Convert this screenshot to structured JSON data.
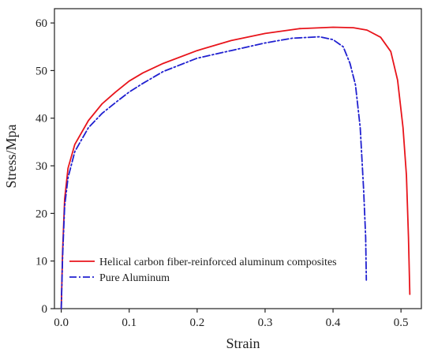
{
  "chart_data": {
    "type": "line",
    "xlabel": "Strain",
    "ylabel": "Stress/Mpa",
    "xlim": [
      -0.01,
      0.53
    ],
    "ylim": [
      0,
      63
    ],
    "xticks": [
      0.0,
      0.1,
      0.2,
      0.3,
      0.4,
      0.5
    ],
    "xtick_labels": [
      "0.0",
      "0.1",
      "0.2",
      "0.3",
      "0.4",
      "0.5"
    ],
    "yticks": [
      0,
      10,
      20,
      30,
      40,
      50,
      60
    ],
    "ytick_labels": [
      "0",
      "10",
      "20",
      "30",
      "40",
      "50",
      "60"
    ],
    "legend_position": "bottom-left",
    "grid": false,
    "series": [
      {
        "name": "Helical carbon fiber-reinforced aluminum composites",
        "color": "#e8141b",
        "line_style": "solid",
        "points": [
          [
            0.0,
            0.0
          ],
          [
            0.002,
            12.0
          ],
          [
            0.005,
            23.0
          ],
          [
            0.01,
            29.5
          ],
          [
            0.02,
            34.5
          ],
          [
            0.04,
            39.5
          ],
          [
            0.06,
            43.0
          ],
          [
            0.08,
            45.5
          ],
          [
            0.1,
            47.8
          ],
          [
            0.12,
            49.5
          ],
          [
            0.15,
            51.5
          ],
          [
            0.2,
            54.2
          ],
          [
            0.25,
            56.3
          ],
          [
            0.3,
            57.8
          ],
          [
            0.35,
            58.8
          ],
          [
            0.4,
            59.1
          ],
          [
            0.43,
            59.0
          ],
          [
            0.45,
            58.5
          ],
          [
            0.47,
            57.0
          ],
          [
            0.485,
            54.0
          ],
          [
            0.495,
            48.0
          ],
          [
            0.503,
            38.0
          ],
          [
            0.508,
            28.0
          ],
          [
            0.511,
            15.0
          ],
          [
            0.513,
            3.0
          ]
        ]
      },
      {
        "name": "Pure Aluminum",
        "color": "#2020d0",
        "line_style": "dash-dot",
        "points": [
          [
            0.0,
            0.0
          ],
          [
            0.002,
            11.0
          ],
          [
            0.005,
            21.5
          ],
          [
            0.01,
            27.5
          ],
          [
            0.02,
            33.0
          ],
          [
            0.04,
            38.0
          ],
          [
            0.06,
            41.0
          ],
          [
            0.08,
            43.3
          ],
          [
            0.1,
            45.5
          ],
          [
            0.12,
            47.3
          ],
          [
            0.15,
            49.8
          ],
          [
            0.2,
            52.6
          ],
          [
            0.25,
            54.2
          ],
          [
            0.3,
            55.8
          ],
          [
            0.34,
            56.8
          ],
          [
            0.38,
            57.1
          ],
          [
            0.4,
            56.5
          ],
          [
            0.415,
            55.0
          ],
          [
            0.425,
            51.5
          ],
          [
            0.433,
            47.0
          ],
          [
            0.44,
            38.0
          ],
          [
            0.445,
            25.0
          ],
          [
            0.448,
            15.0
          ],
          [
            0.449,
            6.0
          ]
        ]
      }
    ]
  }
}
